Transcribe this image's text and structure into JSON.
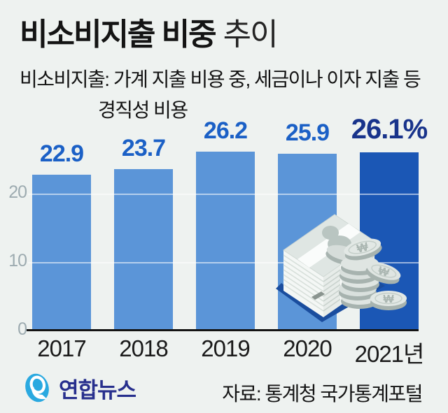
{
  "title": {
    "bold": "비소비지출 비중",
    "light": "추이"
  },
  "subtitle": {
    "line1": "비소비지출: 가계 지출 비용 중, 세금이나 이자 지출 등",
    "line2": "경직성 비용"
  },
  "chart_data": {
    "type": "bar",
    "title": "비소비지출 비중 추이",
    "categories": [
      "2017",
      "2018",
      "2019",
      "2020",
      "2021년"
    ],
    "values": [
      22.9,
      23.7,
      26.2,
      25.9,
      26.1
    ],
    "value_labels": [
      "22.9",
      "23.7",
      "26.2",
      "25.9",
      "26.1%"
    ],
    "unit": "%",
    "yticks": [
      0,
      10,
      20
    ],
    "gridlines": [
      10,
      20
    ],
    "ylim": [
      0,
      27
    ],
    "highlight_index": 4,
    "bar_colors": {
      "default": "#5b95d8",
      "highlight": "#1b57b5"
    },
    "label_colors": {
      "default": "#1b60c6",
      "highlight": "#18338b"
    },
    "legend": "none",
    "grid": "horizontal-over-bars"
  },
  "footer": {
    "logo_text": "연합뉴스",
    "source": "자료: 통계청 국가통계포털"
  },
  "icons": {
    "logo": "yonhap-swirl-icon",
    "illustration": "money-stack-and-coins",
    "coin_symbol": "₩"
  }
}
